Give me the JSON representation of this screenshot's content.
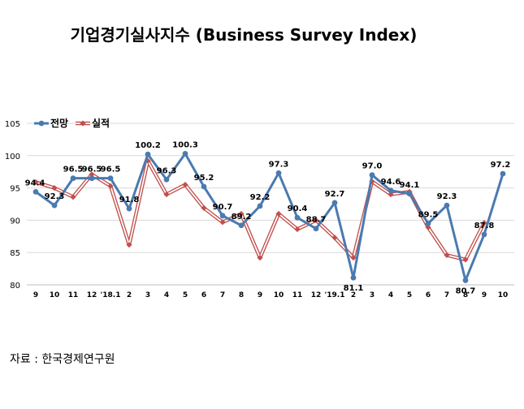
{
  "chart_data": {
    "type": "line",
    "title": "기업경기실사지수 (Business Survey Index)",
    "xlabel": "",
    "ylabel": "",
    "ylim": [
      80,
      105
    ],
    "yticks": [
      "80",
      "85",
      "90",
      "95",
      "100",
      "105"
    ],
    "categories": [
      "9",
      "10",
      "11",
      "12",
      "'18.1",
      "2",
      "3",
      "4",
      "5",
      "6",
      "7",
      "8",
      "9",
      "10",
      "11",
      "12",
      "'19.1",
      "2",
      "3",
      "4",
      "5",
      "6",
      "7",
      "8",
      "9",
      "10"
    ],
    "series": [
      {
        "name": "전망",
        "color": "#4a7ab0",
        "marker": "circle",
        "values": [
          94.4,
          92.3,
          96.5,
          96.5,
          96.5,
          91.8,
          100.2,
          96.3,
          100.3,
          95.2,
          90.7,
          89.2,
          92.2,
          97.3,
          90.4,
          88.7,
          92.7,
          81.1,
          97.0,
          94.6,
          94.1,
          89.5,
          92.3,
          80.7,
          87.8,
          97.2
        ],
        "labels": [
          "94.4",
          "92.3",
          "96.5",
          "96.5",
          "96.5",
          "91.8",
          "100.2",
          "96.3",
          "100.3",
          "95.2",
          "90.7",
          "89.2",
          "92.2",
          "97.3",
          "90.4",
          "88.7",
          "92.7",
          "81.1",
          "97.0",
          "94.6",
          "94.1",
          "89.5",
          "92.3",
          "80.7",
          "87.8",
          "97.2"
        ]
      },
      {
        "name": "실적",
        "color": "#c0504d",
        "marker": "diamond",
        "values": [
          95.9,
          95.0,
          93.6,
          97.1,
          95.3,
          86.2,
          99.2,
          94.0,
          95.5,
          91.9,
          89.7,
          91.0,
          84.2,
          91.0,
          88.6,
          90.0,
          87.3,
          84.2,
          96.0,
          94.0,
          94.4,
          88.9,
          84.6,
          83.9,
          89.6,
          null
        ]
      }
    ],
    "legend": "top-left",
    "grid": true
  },
  "source": "자료 : 한국경제연구원"
}
